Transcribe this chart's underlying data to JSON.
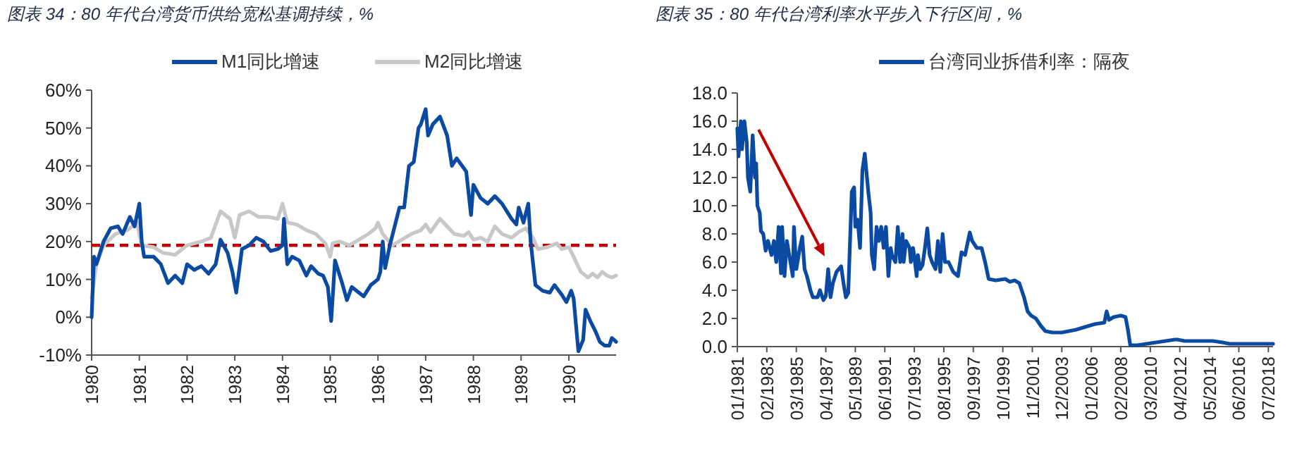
{
  "chart_data": [
    {
      "type": "line",
      "title": "图表 34：80 年代台湾货币供给宽松基调持续，%",
      "legend": "top",
      "xlim": [
        1980,
        1990.99
      ],
      "xticks": [
        1980,
        1981,
        1982,
        1983,
        1984,
        1985,
        1986,
        1987,
        1988,
        1989,
        1990
      ],
      "ylim": [
        -10,
        60
      ],
      "yticks": [
        {
          "value": -10,
          "label": "-10%"
        },
        {
          "value": 0,
          "label": "0%"
        },
        {
          "value": 10,
          "label": "10%"
        },
        {
          "value": 20,
          "label": "20%"
        },
        {
          "value": 30,
          "label": "30%"
        },
        {
          "value": 40,
          "label": "40%"
        },
        {
          "value": 50,
          "label": "50%"
        },
        {
          "value": 60,
          "label": "60%"
        }
      ],
      "ref_lines": [
        {
          "axis": "y",
          "value": 19,
          "color": "#c00000",
          "line_style": "dashed"
        }
      ],
      "series": [
        {
          "name": "M2同比增速",
          "color": "#c8c8c8",
          "x": [
            1980,
            1980.1,
            1980.25,
            1980.5,
            1980.75,
            1980.95,
            1981.05,
            1981.3,
            1981.5,
            1981.75,
            1982,
            1982.3,
            1982.5,
            1982.7,
            1982.9,
            1983,
            1983.1,
            1983.3,
            1983.5,
            1983.7,
            1983.9,
            1984,
            1984.1,
            1984.3,
            1984.5,
            1984.7,
            1984.9,
            1985,
            1985.05,
            1985.2,
            1985.4,
            1985.6,
            1985.8,
            1985.95,
            1986,
            1986.1,
            1986.3,
            1986.5,
            1986.7,
            1986.9,
            1987,
            1987.1,
            1987.3,
            1987.45,
            1987.6,
            1987.8,
            1987.9,
            1988,
            1988.15,
            1988.3,
            1988.45,
            1988.6,
            1988.8,
            1988.95,
            1989.1,
            1989.25,
            1989.35,
            1989.55,
            1989.75,
            1989.85,
            1990,
            1990.1,
            1990.25,
            1990.4,
            1990.5,
            1990.6,
            1990.7,
            1990.8,
            1990.9,
            1990.99
          ],
          "values": [
            5,
            14,
            19,
            22,
            23,
            25,
            19,
            18.5,
            17,
            16.5,
            19,
            20,
            21,
            28,
            26,
            21,
            27,
            28,
            26.5,
            26.5,
            26,
            30,
            25,
            24.5,
            23,
            22,
            19.5,
            16,
            19.5,
            20,
            19,
            20.5,
            22,
            23.5,
            25,
            22,
            19,
            20.5,
            22,
            23,
            24.5,
            22.5,
            26,
            24,
            22,
            21.5,
            22.5,
            20.5,
            21,
            20,
            24,
            22,
            21,
            22.5,
            23.5,
            21,
            18,
            18.5,
            19.5,
            18,
            18.5,
            16,
            12,
            10.5,
            11.5,
            10.5,
            12,
            11,
            10.5,
            11
          ]
        },
        {
          "name": "M1同比增速",
          "color": "#0b4aa2",
          "x": [
            1980,
            1980.05,
            1980.1,
            1980.25,
            1980.4,
            1980.55,
            1980.65,
            1980.8,
            1980.9,
            1981,
            1981.05,
            1981.1,
            1981.3,
            1981.45,
            1981.6,
            1981.75,
            1981.9,
            1982,
            1982.15,
            1982.3,
            1982.45,
            1982.6,
            1982.7,
            1982.85,
            1982.95,
            1983.03,
            1983.15,
            1983.3,
            1983.45,
            1983.6,
            1983.75,
            1983.9,
            1984,
            1984.03,
            1984.1,
            1984.2,
            1984.35,
            1984.5,
            1984.6,
            1984.75,
            1984.85,
            1984.95,
            1985.02,
            1985.1,
            1985.25,
            1985.35,
            1985.45,
            1985.6,
            1985.7,
            1985.85,
            1986,
            1986.05,
            1986.1,
            1986.15,
            1986.25,
            1986.35,
            1986.45,
            1986.55,
            1986.65,
            1986.75,
            1986.85,
            1986.9,
            1987,
            1987.05,
            1987.15,
            1987.3,
            1987.45,
            1987.55,
            1987.65,
            1987.85,
            1987.95,
            1988,
            1988.15,
            1988.3,
            1988.45,
            1988.6,
            1988.8,
            1988.9,
            1988.95,
            1989.05,
            1989.15,
            1989.2,
            1989.3,
            1989.45,
            1989.6,
            1989.7,
            1989.85,
            1989.95,
            1990.05,
            1990.1,
            1990.2,
            1990.3,
            1990.35,
            1990.45,
            1990.55,
            1990.65,
            1990.75,
            1990.85,
            1990.9,
            1990.95,
            1990.99
          ],
          "values": [
            0,
            16,
            14,
            20,
            23.5,
            24,
            22,
            26.5,
            24,
            30,
            20,
            16,
            16,
            14,
            9,
            11,
            9,
            14,
            12.5,
            13.5,
            11.5,
            14,
            20.5,
            17,
            12,
            6.5,
            18,
            19,
            21,
            20,
            17.5,
            18,
            19,
            26,
            14,
            16,
            15,
            11,
            13.5,
            11.5,
            11,
            8,
            -1,
            15,
            9,
            4.5,
            8,
            6.5,
            5.5,
            8.5,
            10,
            12,
            20,
            13,
            19,
            24,
            29,
            29,
            40,
            41,
            50,
            51,
            55,
            48,
            51,
            53,
            48,
            40,
            42,
            38.5,
            27,
            35,
            31.5,
            30,
            32,
            30,
            26,
            24.5,
            29,
            25,
            30,
            20,
            8.5,
            7,
            6.5,
            8.5,
            6,
            4,
            7,
            5,
            -9,
            -6,
            2,
            -1,
            -3.5,
            -6.5,
            -7.5,
            -7.5,
            -5.5,
            -6,
            -6.5
          ]
        }
      ]
    },
    {
      "type": "line",
      "title": "图表 35：80 年代台湾利率水平步入下行区间，%",
      "legend": "top",
      "xlim": [
        "1981-01",
        "2018-11"
      ],
      "xticks": [
        {
          "value": "1981-01",
          "label": "01/1981"
        },
        {
          "value": "1983-02",
          "label": "02/1983"
        },
        {
          "value": "1985-03",
          "label": "03/1985"
        },
        {
          "value": "1987-04",
          "label": "04/1987"
        },
        {
          "value": "1989-05",
          "label": "05/1989"
        },
        {
          "value": "1991-06",
          "label": "06/1991"
        },
        {
          "value": "1993-07",
          "label": "07/1993"
        },
        {
          "value": "1995-08",
          "label": "08/1995"
        },
        {
          "value": "1997-09",
          "label": "09/1997"
        },
        {
          "value": "1999-10",
          "label": "10/1999"
        },
        {
          "value": "2001-11",
          "label": "11/2001"
        },
        {
          "value": "2003-12",
          "label": "12/2003"
        },
        {
          "value": "2006-01",
          "label": "01/2006"
        },
        {
          "value": "2008-02",
          "label": "02/2008"
        },
        {
          "value": "2010-03",
          "label": "03/2010"
        },
        {
          "value": "2012-04",
          "label": "04/2012"
        },
        {
          "value": "2014-05",
          "label": "05/2014"
        },
        {
          "value": "2016-06",
          "label": "06/2016"
        },
        {
          "value": "2018-07",
          "label": "07/2018"
        }
      ],
      "ylim": [
        0,
        18
      ],
      "yticks": [
        {
          "value": 0,
          "label": "0.0"
        },
        {
          "value": 2,
          "label": "2.0"
        },
        {
          "value": 4,
          "label": "4.0"
        },
        {
          "value": 6,
          "label": "6.0"
        },
        {
          "value": 8,
          "label": "8.0"
        },
        {
          "value": 10,
          "label": "10.0"
        },
        {
          "value": 12,
          "label": "12.0"
        },
        {
          "value": 14,
          "label": "14.0"
        },
        {
          "value": 16,
          "label": "16.0"
        },
        {
          "value": 18,
          "label": "18.0"
        }
      ],
      "series": [
        {
          "name": "台湾同业拆借利率：隔夜",
          "color": "#0b4aa2",
          "x": [
            "1981-01",
            "1981-02",
            "1981-04",
            "1981-05",
            "1981-07",
            "1981-09",
            "1981-10",
            "1981-12",
            "1982-02",
            "1982-04",
            "1982-05",
            "1982-06",
            "1982-08",
            "1982-09",
            "1982-11",
            "1983-01",
            "1983-03",
            "1983-06",
            "1983-08",
            "1983-10",
            "1983-12",
            "1984-02",
            "1984-03",
            "1984-05",
            "1984-07",
            "1984-10",
            "1984-12",
            "1985-01",
            "1985-03",
            "1985-06",
            "1985-08",
            "1985-10",
            "1985-12",
            "1986-03",
            "1986-05",
            "1986-09",
            "1986-11",
            "1987-02",
            "1987-04",
            "1987-06",
            "1987-08",
            "1987-10",
            "1988-01",
            "1988-05",
            "1988-07",
            "1988-09",
            "1988-11",
            "1989-02",
            "1989-04",
            "1989-05",
            "1989-07",
            "1989-09",
            "1989-11",
            "1990-01",
            "1990-04",
            "1990-06",
            "1990-07",
            "1990-09",
            "1990-11",
            "1991-01",
            "1991-03",
            "1991-05",
            "1991-07",
            "1991-09",
            "1991-11",
            "1991-12",
            "1992-03",
            "1992-05",
            "1992-07",
            "1992-09",
            "1992-10",
            "1992-12",
            "1993-03",
            "1993-04",
            "1993-06",
            "1993-09",
            "1993-10",
            "1993-12",
            "1994-02",
            "1994-04",
            "1994-06",
            "1994-08",
            "1994-10",
            "1995-01",
            "1995-03",
            "1995-05",
            "1995-07",
            "1995-09",
            "1995-12",
            "1996-04",
            "1996-08",
            "1996-11",
            "1997-02",
            "1997-06",
            "1997-08",
            "1997-12",
            "1998-04",
            "1998-07",
            "1998-10",
            "1999-04",
            "1999-12",
            "2000-04",
            "2000-08",
            "2000-12",
            "2001-04",
            "2001-07",
            "2001-10",
            "2002-02",
            "2002-06",
            "2002-10",
            "2003-04",
            "2003-12",
            "2004-06",
            "2004-12",
            "2005-08",
            "2006-04",
            "2006-12",
            "2007-02",
            "2007-04",
            "2007-08",
            "2008-02",
            "2008-06",
            "2008-08",
            "2008-10",
            "2009-04",
            "2009-12",
            "2010-08",
            "2011-04",
            "2011-12",
            "2012-02",
            "2012-08",
            "2013-04",
            "2013-12",
            "2014-08",
            "2015-04",
            "2015-10",
            "2016-08",
            "2017-08",
            "2018-11"
          ],
          "values": [
            15.5,
            13.5,
            16,
            14,
            16,
            14.5,
            12,
            11,
            15,
            12,
            13,
            10,
            9.5,
            8.2,
            8,
            6.8,
            7.5,
            6.5,
            7.5,
            6,
            8.5,
            5.2,
            8.5,
            5,
            7.5,
            6,
            5,
            8.5,
            5.5,
            7,
            7.8,
            5.5,
            5,
            4,
            3.5,
            3.5,
            4,
            3.3,
            3.6,
            5.5,
            3.5,
            4.5,
            5.3,
            5.7,
            4.5,
            3.5,
            3.8,
            11,
            11.3,
            8.5,
            9,
            7,
            12.5,
            13.7,
            11,
            9.5,
            6.5,
            5.5,
            8.5,
            7.5,
            8.5,
            7,
            8.5,
            5,
            7,
            6.5,
            6,
            8.5,
            6,
            8,
            6,
            7.5,
            7,
            6,
            7,
            5,
            6.5,
            5.5,
            5.8,
            7,
            8.4,
            6.5,
            6,
            5.5,
            7.5,
            5.3,
            8,
            6,
            6,
            5.3,
            5,
            6.7,
            6.5,
            8.1,
            7.5,
            7,
            7,
            6,
            4.8,
            4.7,
            4.8,
            4.6,
            4.7,
            4.5,
            3.5,
            2.5,
            2.2,
            2,
            1.5,
            1.1,
            1,
            1,
            1.1,
            1.2,
            1.4,
            1.6,
            1.7,
            2.5,
            1.9,
            2.1,
            2.2,
            2.1,
            1.2,
            0.1,
            0.1,
            0.2,
            0.3,
            0.4,
            0.5,
            0.5,
            0.4,
            0.4,
            0.4,
            0.4,
            0.3,
            0.2,
            0.2,
            0.2,
            0.2
          ]
        }
      ]
    }
  ]
}
